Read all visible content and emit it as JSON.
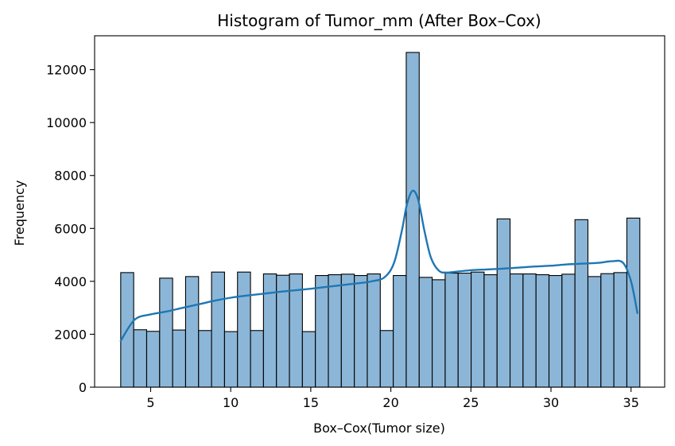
{
  "chart_data": {
    "type": "bar",
    "title": "Histogram of Tumor_mm (After Box–Cox)",
    "xlabel": "Box–Cox(Tumor size)",
    "ylabel": "Frequency",
    "xlim": [
      1.5,
      37.1
    ],
    "ylim": [
      0,
      13280
    ],
    "xticks": [
      5,
      10,
      15,
      20,
      25,
      30,
      35
    ],
    "xtick_labels": [
      "5",
      "10",
      "15",
      "20",
      "25",
      "30",
      "35"
    ],
    "yticks": [
      0,
      2000,
      4000,
      6000,
      8000,
      10000,
      12000
    ],
    "ytick_labels": [
      "0",
      "2000",
      "4000",
      "6000",
      "8000",
      "10000",
      "12000"
    ],
    "grid": false,
    "bin_start": 3.13,
    "bin_width": 0.8105,
    "values": [
      4330,
      2170,
      2110,
      4120,
      2160,
      4180,
      2140,
      4350,
      2100,
      4350,
      2140,
      4280,
      4230,
      4280,
      2100,
      4220,
      4250,
      4270,
      4220,
      4280,
      2140,
      4220,
      12650,
      4150,
      4060,
      4310,
      4310,
      4350,
      4250,
      6360,
      4280,
      4280,
      4250,
      4220,
      4270,
      6330,
      4180,
      4290,
      4330,
      6390
    ],
    "series": [
      {
        "type": "line",
        "x": [
          3.13,
          4.0,
          5.0,
          6.0,
          7.0,
          8.0,
          9.0,
          10.0,
          11.0,
          12.0,
          13.0,
          14.0,
          15.0,
          16.0,
          17.0,
          18.0,
          18.8,
          19.6,
          20.2,
          20.7,
          21.0,
          21.35,
          21.7,
          22.1,
          22.5,
          23.0,
          23.5,
          24.0,
          25.0,
          26.0,
          27.0,
          28.0,
          29.0,
          30.0,
          31.0,
          32.0,
          33.0,
          33.8,
          34.5,
          35.0,
          35.4
        ],
        "y": [
          1750,
          2550,
          2750,
          2860,
          3000,
          3130,
          3270,
          3380,
          3460,
          3530,
          3600,
          3660,
          3720,
          3790,
          3860,
          3930,
          4000,
          4150,
          4700,
          5950,
          6900,
          7420,
          7100,
          5900,
          4900,
          4400,
          4330,
          4360,
          4420,
          4450,
          4480,
          4520,
          4560,
          4590,
          4640,
          4670,
          4700,
          4760,
          4700,
          4000,
          2800
        ]
      }
    ]
  }
}
